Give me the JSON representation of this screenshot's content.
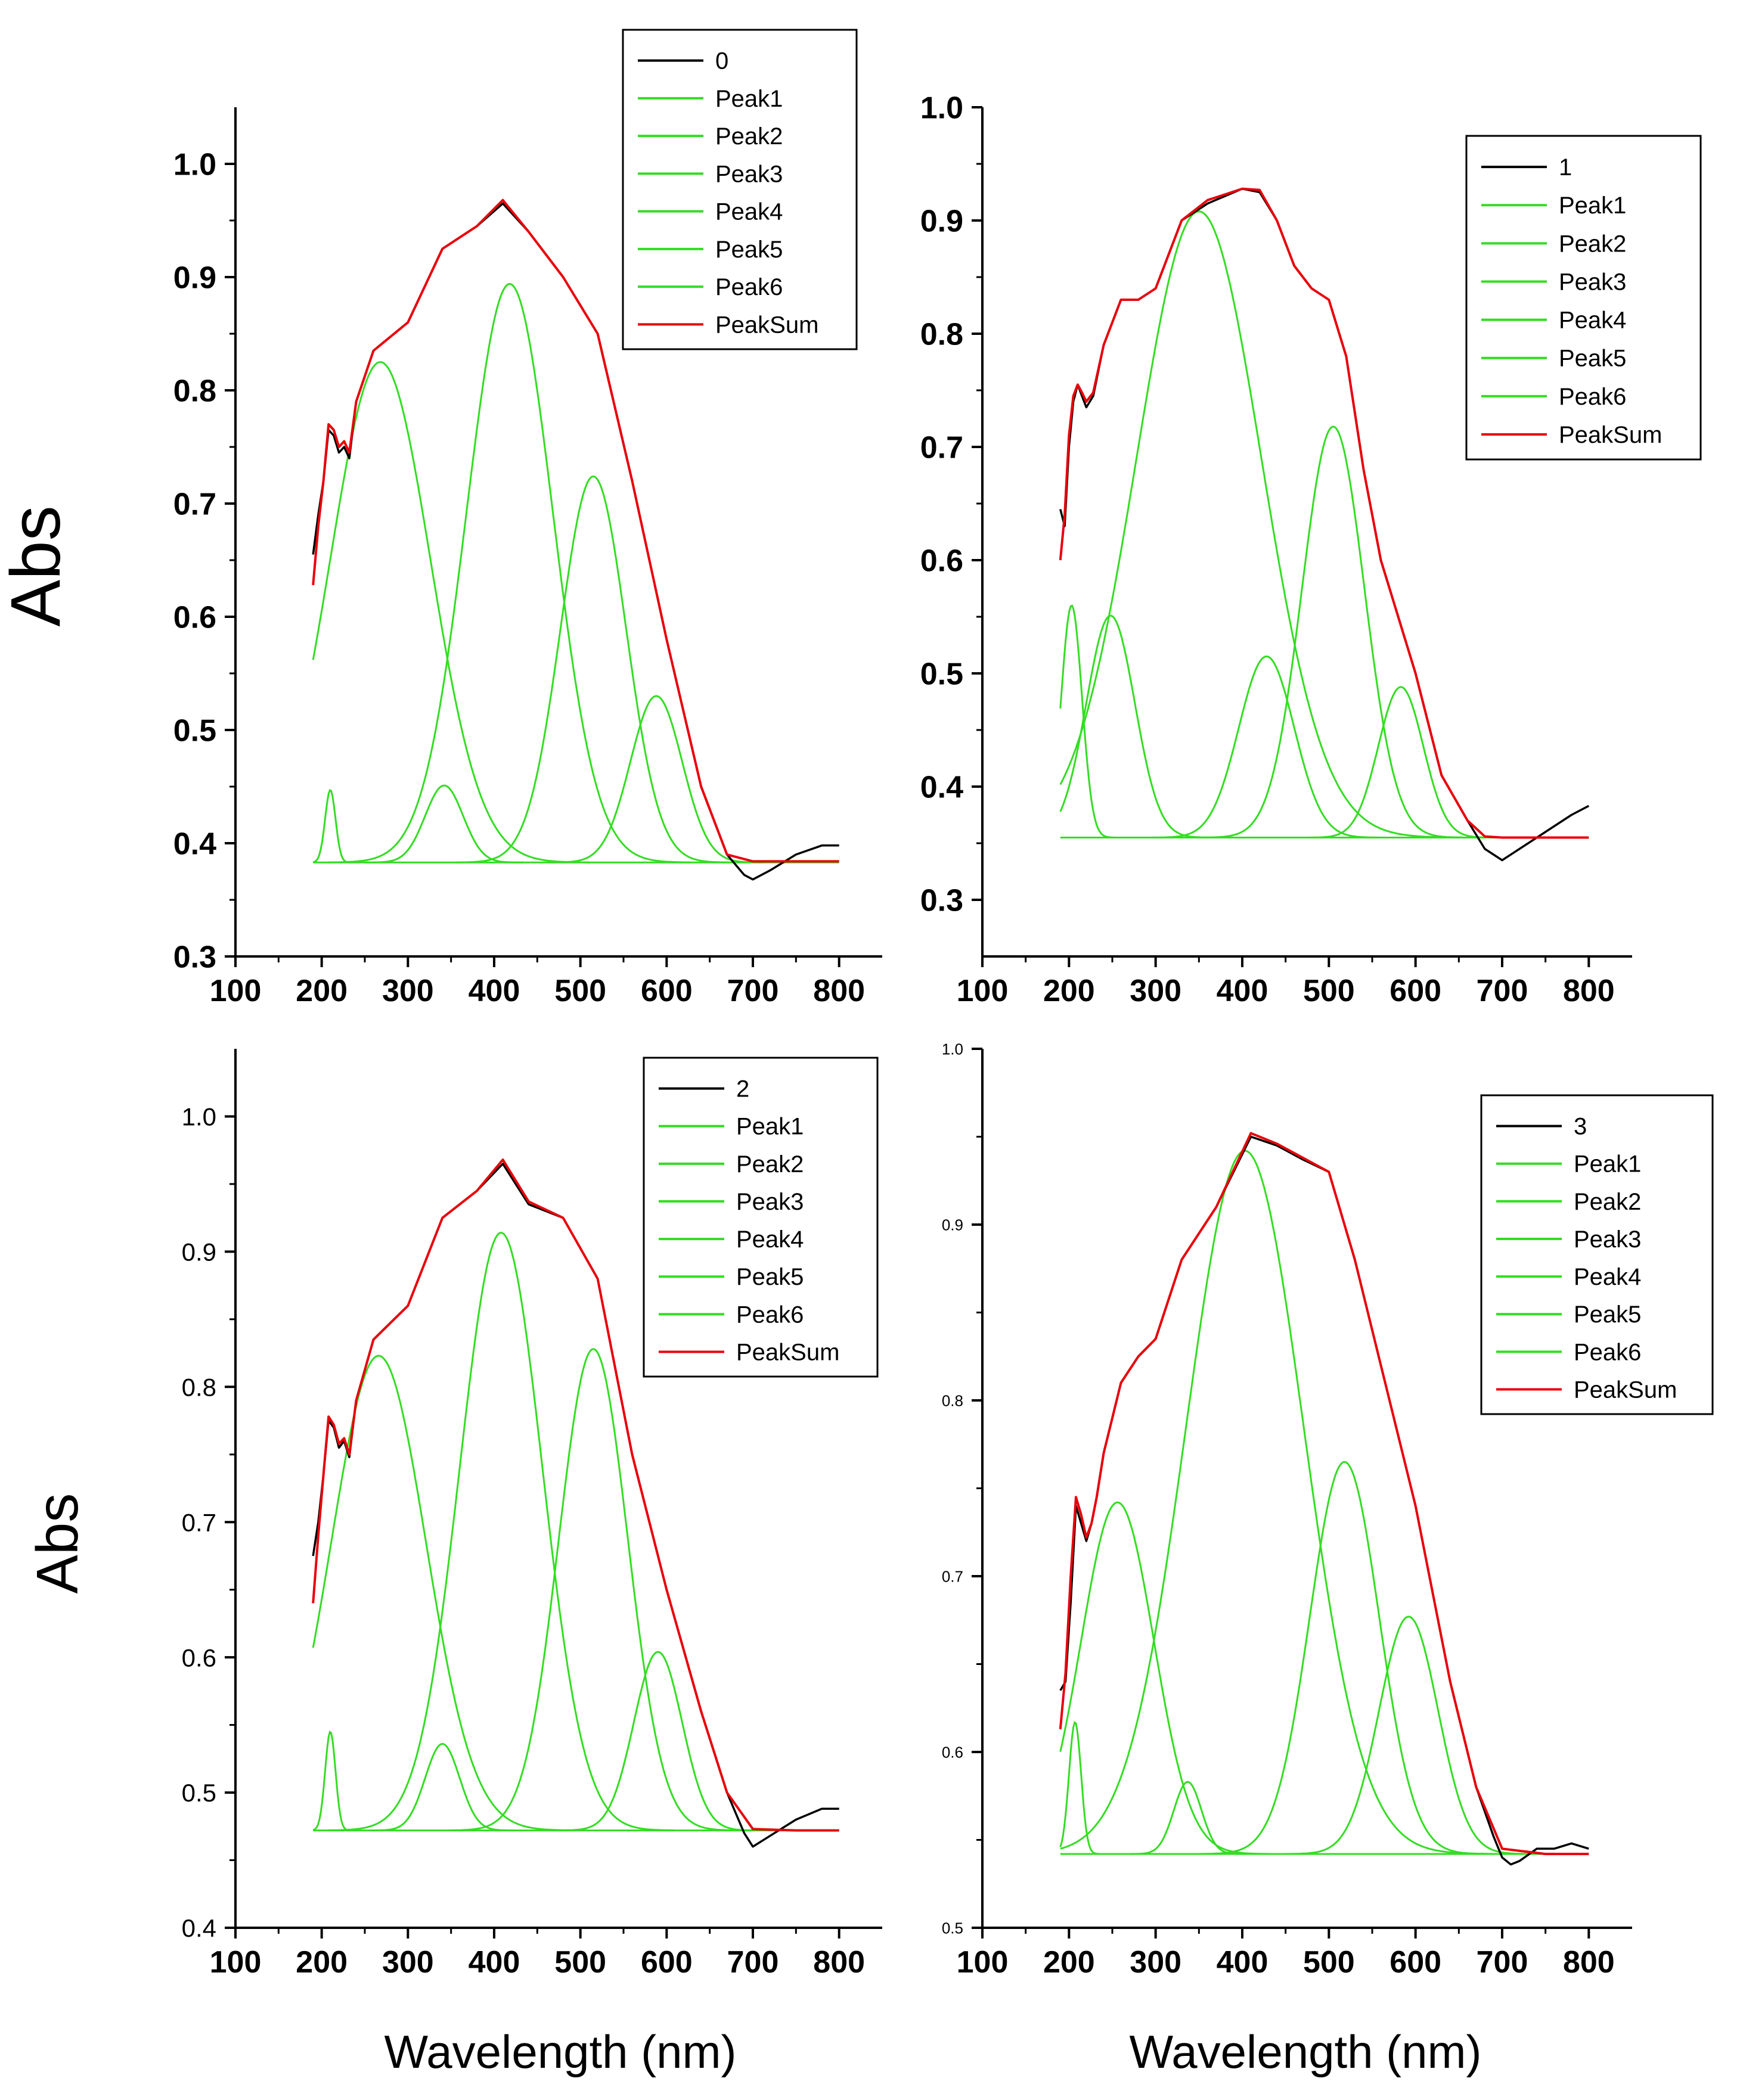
{
  "chart_data": [
    {
      "type": "line",
      "panel": "top-left",
      "ylabel": "Abs",
      "xlabel": "",
      "xlim": [
        100,
        850
      ],
      "ylim": [
        0.3,
        1.05
      ],
      "xticks": [
        100,
        200,
        300,
        400,
        500,
        600,
        700,
        800
      ],
      "yticks": [
        0.3,
        0.4,
        0.5,
        0.6,
        0.7,
        0.8,
        0.9,
        1.0
      ],
      "x_tick_labels": [
        "100",
        "200",
        "300",
        "400",
        "500",
        "600",
        "700",
        "800"
      ],
      "y_tick_labels": [
        "0.3",
        "0.4",
        "0.5",
        "0.6",
        "0.7",
        "0.8",
        "0.9",
        "1.0"
      ],
      "legend_position": "top-right",
      "legend": [
        "0",
        "Peak1",
        "Peak2",
        "Peak3",
        "Peak4",
        "Peak5",
        "Peak6",
        "PeakSum"
      ],
      "baseline": 0.383,
      "peaks": [
        {
          "name": "Peak1",
          "center": 210,
          "height": 0.447,
          "width": 6
        },
        {
          "name": "Peak2",
          "center": 268,
          "height": 0.825,
          "width": 58
        },
        {
          "name": "Peak3",
          "center": 342,
          "height": 0.451,
          "width": 22
        },
        {
          "name": "Peak4",
          "center": 418,
          "height": 0.894,
          "width": 50
        },
        {
          "name": "Peak5",
          "center": 515,
          "height": 0.724,
          "width": 38
        },
        {
          "name": "Peak6",
          "center": 588,
          "height": 0.53,
          "width": 30
        }
      ],
      "series": [
        {
          "name": "0",
          "color": "#000000",
          "x": [
            190,
            196,
            202,
            208,
            214,
            220,
            226,
            232,
            240,
            260,
            300,
            340,
            380,
            410,
            440,
            480,
            520,
            560,
            600,
            640,
            670,
            690,
            700,
            720,
            750,
            780,
            800
          ],
          "y": [
            0.655,
            0.69,
            0.72,
            0.765,
            0.76,
            0.745,
            0.75,
            0.74,
            0.79,
            0.835,
            0.86,
            0.925,
            0.945,
            0.965,
            0.94,
            0.9,
            0.85,
            0.72,
            0.58,
            0.45,
            0.39,
            0.372,
            0.368,
            0.376,
            0.39,
            0.398,
            0.398
          ]
        },
        {
          "name": "PeakSum",
          "color": "#e8000b",
          "x": [
            190,
            196,
            202,
            208,
            214,
            220,
            226,
            232,
            240,
            260,
            300,
            340,
            380,
            410,
            440,
            480,
            520,
            560,
            600,
            640,
            670,
            700,
            750,
            800
          ],
          "y": [
            0.628,
            0.68,
            0.72,
            0.77,
            0.765,
            0.75,
            0.755,
            0.745,
            0.79,
            0.835,
            0.86,
            0.925,
            0.945,
            0.968,
            0.94,
            0.9,
            0.85,
            0.72,
            0.58,
            0.45,
            0.39,
            0.384,
            0.384,
            0.384
          ]
        }
      ]
    },
    {
      "type": "line",
      "panel": "top-right",
      "ylabel": "",
      "xlabel": "",
      "xlim": [
        100,
        850
      ],
      "ylim": [
        0.25,
        1.0
      ],
      "xticks": [
        100,
        200,
        300,
        400,
        500,
        600,
        700,
        800
      ],
      "yticks": [
        0.3,
        0.4,
        0.5,
        0.6,
        0.7,
        0.8,
        0.9,
        1.0
      ],
      "x_tick_labels": [
        "100",
        "200",
        "300",
        "400",
        "500",
        "600",
        "700",
        "800"
      ],
      "y_tick_labels": [
        "0.3",
        "0.4",
        "0.5",
        "0.6",
        "0.7",
        "0.8",
        "0.9",
        "1.0"
      ],
      "legend_position": "top-right",
      "legend": [
        "1",
        "Peak1",
        "Peak2",
        "Peak3",
        "Peak4",
        "Peak5",
        "Peak6",
        "PeakSum"
      ],
      "baseline": 0.355,
      "peaks": [
        {
          "name": "Peak1",
          "center": 203,
          "height": 0.56,
          "width": 12
        },
        {
          "name": "Peak2",
          "center": 248,
          "height": 0.551,
          "width": 28
        },
        {
          "name": "Peak3",
          "center": 350,
          "height": 0.908,
          "width": 72
        },
        {
          "name": "Peak4",
          "center": 428,
          "height": 0.515,
          "width": 32
        },
        {
          "name": "Peak5",
          "center": 505,
          "height": 0.718,
          "width": 36
        },
        {
          "name": "Peak6",
          "center": 583,
          "height": 0.488,
          "width": 26
        }
      ],
      "series": [
        {
          "name": "1",
          "color": "#000000",
          "x": [
            190,
            195,
            200,
            205,
            210,
            215,
            220,
            228,
            240,
            260,
            280,
            300,
            330,
            360,
            400,
            420,
            440,
            460,
            480,
            500,
            520,
            540,
            560,
            580,
            600,
            630,
            660,
            680,
            700,
            720,
            750,
            780,
            800
          ],
          "y": [
            0.645,
            0.63,
            0.7,
            0.74,
            0.755,
            0.745,
            0.735,
            0.745,
            0.79,
            0.83,
            0.83,
            0.84,
            0.9,
            0.915,
            0.928,
            0.925,
            0.9,
            0.86,
            0.84,
            0.83,
            0.78,
            0.68,
            0.6,
            0.55,
            0.5,
            0.41,
            0.37,
            0.345,
            0.335,
            0.345,
            0.36,
            0.375,
            0.383
          ]
        },
        {
          "name": "PeakSum",
          "color": "#e8000b",
          "x": [
            190,
            195,
            200,
            205,
            210,
            215,
            220,
            228,
            240,
            260,
            280,
            300,
            330,
            360,
            400,
            420,
            440,
            460,
            480,
            500,
            520,
            540,
            560,
            580,
            600,
            630,
            660,
            680,
            700,
            750,
            800
          ],
          "y": [
            0.6,
            0.64,
            0.71,
            0.745,
            0.755,
            0.748,
            0.74,
            0.748,
            0.79,
            0.83,
            0.83,
            0.84,
            0.9,
            0.918,
            0.928,
            0.927,
            0.9,
            0.86,
            0.84,
            0.83,
            0.78,
            0.68,
            0.6,
            0.55,
            0.5,
            0.41,
            0.37,
            0.356,
            0.355,
            0.355,
            0.355
          ]
        }
      ]
    },
    {
      "type": "line",
      "panel": "bottom-left",
      "ylabel": "Abs",
      "xlabel": "Wavelength (nm)",
      "xlim": [
        100,
        850
      ],
      "ylim": [
        0.4,
        1.05
      ],
      "xticks": [
        100,
        200,
        300,
        400,
        500,
        600,
        700,
        800
      ],
      "yticks": [
        0.4,
        0.5,
        0.6,
        0.7,
        0.8,
        0.9,
        1.0
      ],
      "x_tick_labels": [
        "100",
        "200",
        "300",
        "400",
        "500",
        "600",
        "700",
        "800"
      ],
      "y_tick_labels": [
        "0.4",
        "0.5",
        "0.6",
        "0.7",
        "0.8",
        "0.9",
        "1.0"
      ],
      "legend_position": "top-right",
      "legend": [
        "2",
        "Peak1",
        "Peak2",
        "Peak3",
        "Peak4",
        "Peak5",
        "Peak6",
        "PeakSum"
      ],
      "baseline": 0.472,
      "peaks": [
        {
          "name": "Peak1",
          "center": 210,
          "height": 0.545,
          "width": 6
        },
        {
          "name": "Peak2",
          "center": 266,
          "height": 0.823,
          "width": 55
        },
        {
          "name": "Peak3",
          "center": 340,
          "height": 0.536,
          "width": 20
        },
        {
          "name": "Peak4",
          "center": 408,
          "height": 0.914,
          "width": 48
        },
        {
          "name": "Peak5",
          "center": 515,
          "height": 0.828,
          "width": 40
        },
        {
          "name": "Peak6",
          "center": 590,
          "height": 0.604,
          "width": 28
        }
      ],
      "series": [
        {
          "name": "2",
          "color": "#000000",
          "x": [
            190,
            196,
            202,
            208,
            214,
            220,
            226,
            232,
            240,
            260,
            300,
            340,
            380,
            410,
            440,
            480,
            520,
            560,
            600,
            640,
            670,
            690,
            700,
            720,
            750,
            780,
            800
          ],
          "y": [
            0.675,
            0.7,
            0.735,
            0.775,
            0.77,
            0.755,
            0.76,
            0.748,
            0.79,
            0.835,
            0.86,
            0.925,
            0.945,
            0.965,
            0.935,
            0.925,
            0.88,
            0.75,
            0.65,
            0.56,
            0.5,
            0.47,
            0.46,
            0.468,
            0.48,
            0.488,
            0.488
          ]
        },
        {
          "name": "PeakSum",
          "color": "#e8000b",
          "x": [
            190,
            196,
            202,
            208,
            214,
            220,
            226,
            232,
            240,
            260,
            300,
            340,
            380,
            410,
            440,
            480,
            520,
            560,
            600,
            640,
            670,
            700,
            750,
            800
          ],
          "y": [
            0.64,
            0.69,
            0.735,
            0.778,
            0.772,
            0.758,
            0.762,
            0.75,
            0.79,
            0.835,
            0.86,
            0.925,
            0.945,
            0.968,
            0.937,
            0.925,
            0.88,
            0.75,
            0.65,
            0.56,
            0.5,
            0.473,
            0.472,
            0.472
          ]
        }
      ]
    },
    {
      "type": "line",
      "panel": "bottom-right",
      "ylabel": "",
      "xlabel": "Wavelength (nm)",
      "xlim": [
        100,
        850
      ],
      "ylim": [
        0.5,
        1.0
      ],
      "xticks": [
        100,
        200,
        300,
        400,
        500,
        600,
        700,
        800
      ],
      "yticks": [
        0.5,
        0.6,
        0.7,
        0.8,
        0.9,
        1.0
      ],
      "x_tick_labels": [
        "100",
        "200",
        "300",
        "400",
        "500",
        "600",
        "700",
        "800"
      ],
      "y_tick_labels": [
        "0.5",
        "0.6",
        "0.7",
        "0.8",
        "0.9",
        "1.0"
      ],
      "legend_position": "top-right",
      "legend": [
        "3",
        "Peak1",
        "Peak2",
        "Peak3",
        "Peak4",
        "Peak5",
        "Peak6",
        "PeakSum"
      ],
      "baseline": 0.542,
      "peaks": [
        {
          "name": "Peak1",
          "center": 207,
          "height": 0.617,
          "width": 7
        },
        {
          "name": "Peak2",
          "center": 256,
          "height": 0.742,
          "width": 42
        },
        {
          "name": "Peak3",
          "center": 337,
          "height": 0.583,
          "width": 16
        },
        {
          "name": "Peak4",
          "center": 403,
          "height": 0.942,
          "width": 68
        },
        {
          "name": "Peak5",
          "center": 518,
          "height": 0.765,
          "width": 40
        },
        {
          "name": "Peak6",
          "center": 592,
          "height": 0.677,
          "width": 34
        }
      ],
      "series": [
        {
          "name": "3",
          "color": "#000000",
          "x": [
            190,
            196,
            202,
            208,
            214,
            220,
            226,
            232,
            240,
            260,
            280,
            300,
            330,
            370,
            410,
            440,
            470,
            500,
            530,
            560,
            600,
            640,
            670,
            690,
            700,
            710,
            720,
            740,
            760,
            780,
            800
          ],
          "y": [
            0.635,
            0.64,
            0.685,
            0.74,
            0.73,
            0.72,
            0.73,
            0.745,
            0.77,
            0.81,
            0.825,
            0.835,
            0.88,
            0.91,
            0.95,
            0.945,
            0.937,
            0.93,
            0.88,
            0.82,
            0.74,
            0.64,
            0.58,
            0.552,
            0.54,
            0.536,
            0.538,
            0.545,
            0.545,
            0.548,
            0.545
          ]
        },
        {
          "name": "PeakSum",
          "color": "#e8000b",
          "x": [
            190,
            196,
            202,
            208,
            214,
            220,
            226,
            232,
            240,
            260,
            280,
            300,
            330,
            370,
            410,
            440,
            470,
            500,
            530,
            560,
            600,
            640,
            670,
            700,
            750,
            800
          ],
          "y": [
            0.613,
            0.645,
            0.7,
            0.745,
            0.735,
            0.722,
            0.73,
            0.745,
            0.77,
            0.81,
            0.825,
            0.835,
            0.88,
            0.91,
            0.952,
            0.946,
            0.938,
            0.93,
            0.88,
            0.82,
            0.74,
            0.64,
            0.58,
            0.545,
            0.542,
            0.542
          ]
        }
      ]
    }
  ],
  "colors": {
    "data": "#000000",
    "peaks": "#33dd22",
    "peaksum": "#e8000b",
    "axis": "#000000",
    "background": "#ffffff"
  }
}
